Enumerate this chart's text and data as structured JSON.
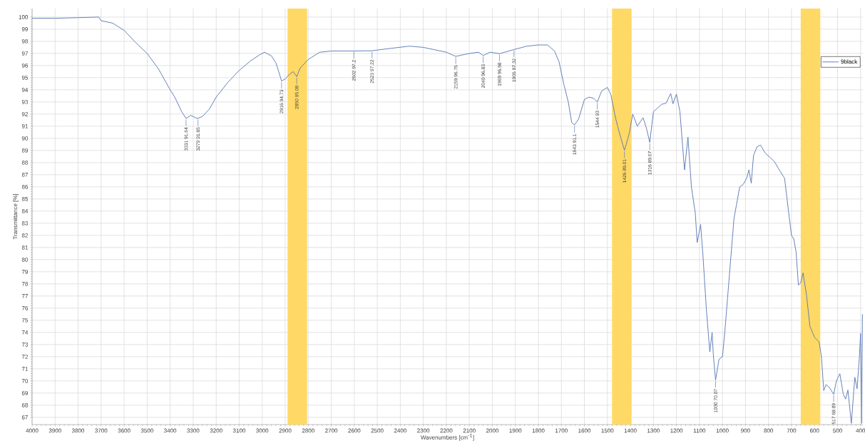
{
  "chart_data": {
    "type": "line",
    "xlabel": "Wavenumbers [cm$^{-1}$]",
    "ylabel": "Transmittance [%]",
    "xlim": [
      4000,
      390
    ],
    "ylim": [
      66.4,
      100.7
    ],
    "xticks": [
      4000,
      3900,
      3800,
      3700,
      3600,
      3500,
      3400,
      3300,
      3200,
      3100,
      3000,
      2900,
      2800,
      2700,
      2600,
      2500,
      2400,
      2300,
      2200,
      2100,
      2000,
      1900,
      1800,
      1700,
      1600,
      1500,
      1400,
      1300,
      1200,
      1100,
      1000,
      900,
      800,
      700,
      600,
      500,
      400
    ],
    "yticks": [
      67,
      68,
      69,
      70,
      71,
      72,
      73,
      74,
      75,
      76,
      77,
      78,
      79,
      80,
      81,
      82,
      83,
      84,
      85,
      86,
      87,
      88,
      89,
      90,
      91,
      92,
      93,
      94,
      95,
      96,
      97,
      98,
      99,
      100
    ],
    "grid": true,
    "legend": "top right",
    "line_style": "solid",
    "x": [
      4000,
      3900,
      3800,
      3710,
      3700,
      3650,
      3600,
      3550,
      3500,
      3450,
      3400,
      3380,
      3350,
      3331,
      3310,
      3290,
      3279,
      3260,
      3230,
      3200,
      3150,
      3100,
      3050,
      3010,
      2990,
      2960,
      2940,
      2925,
      2916,
      2900,
      2880,
      2865,
      2850,
      2835,
      2800,
      2750,
      2700,
      2602,
      2523,
      2450,
      2360,
      2300,
      2250,
      2200,
      2159,
      2100,
      2060,
      2040,
      2010,
      1969,
      1906,
      1850,
      1800,
      1760,
      1730,
      1710,
      1690,
      1670,
      1655,
      1643,
      1625,
      1600,
      1580,
      1560,
      1544,
      1525,
      1500,
      1485,
      1465,
      1450,
      1426,
      1405,
      1390,
      1370,
      1345,
      1330,
      1316,
      1300,
      1285,
      1265,
      1245,
      1225,
      1215,
      1200,
      1185,
      1165,
      1150,
      1135,
      1118,
      1110,
      1095,
      1085,
      1070,
      1055,
      1045,
      1040,
      1030,
      1015,
      1000,
      990,
      970,
      950,
      925,
      910,
      895,
      885,
      875,
      865,
      850,
      835,
      815,
      795,
      775,
      750,
      730,
      710,
      700,
      690,
      680,
      670,
      660,
      650,
      635,
      620,
      600,
      580,
      570,
      560,
      550,
      535,
      517,
      505,
      490,
      475,
      465,
      455,
      440,
      425,
      415,
      405,
      400,
      395,
      392
    ],
    "series": [
      {
        "name": "9black",
        "color": "#5a78b8",
        "values": [
          99.9,
          99.9,
          99.95,
          100,
          99.7,
          99.5,
          98.9,
          97.9,
          97.0,
          95.7,
          94.0,
          93.4,
          92.2,
          91.64,
          91.9,
          91.7,
          91.65,
          91.8,
          92.4,
          93.4,
          94.6,
          95.6,
          96.4,
          96.9,
          97.1,
          96.8,
          96.2,
          95.3,
          94.73,
          94.9,
          95.3,
          95.5,
          95.09,
          95.8,
          96.5,
          97.1,
          97.2,
          97.2,
          97.22,
          97.4,
          97.6,
          97.5,
          97.3,
          97.1,
          96.76,
          97.0,
          97.1,
          96.83,
          97.1,
          96.98,
          97.32,
          97.6,
          97.7,
          97.7,
          97.2,
          96.3,
          94.5,
          93.0,
          91.3,
          91.1,
          91.6,
          93.2,
          93.4,
          93.3,
          93.0,
          93.9,
          94.2,
          93.6,
          91.7,
          90.6,
          89.01,
          90.4,
          92.0,
          91.0,
          91.7,
          90.8,
          89.67,
          92.2,
          92.45,
          92.8,
          92.9,
          93.7,
          92.85,
          93.65,
          92.2,
          87.4,
          90.1,
          86.0,
          83.8,
          81.4,
          82.9,
          80.4,
          75.9,
          72.4,
          74.0,
          72.2,
          70.07,
          71.8,
          72.0,
          74.0,
          78.7,
          83.4,
          86.0,
          86.2,
          86.7,
          87.4,
          86.3,
          88.6,
          89.3,
          89.45,
          88.8,
          88.45,
          88.1,
          87.3,
          86.7,
          83.5,
          82.0,
          81.7,
          80.6,
          77.9,
          78.1,
          78.9,
          77.1,
          74.5,
          73.6,
          73.2,
          72.0,
          69.2,
          69.7,
          69.45,
          68.89,
          70.0,
          70.6,
          68.9,
          68.5,
          69.25,
          66.5,
          70.3,
          69.35,
          72.0,
          73.9,
          66.5,
          75.5
        ]
      }
    ],
    "bands": [
      {
        "axis": "x",
        "from": 2890,
        "to": 2805,
        "color": "#ffd966"
      },
      {
        "axis": "x",
        "from": 1480,
        "to": 1395,
        "color": "#ffd966"
      },
      {
        "axis": "x",
        "from": 660,
        "to": 575,
        "color": "#ffd966"
      }
    ],
    "annotations": [
      {
        "text": "3331 91.64",
        "x": 3331,
        "y": 91.64
      },
      {
        "text": "3279 91.65",
        "x": 3279,
        "y": 91.65
      },
      {
        "text": "2916 94.73",
        "x": 2916,
        "y": 94.73
      },
      {
        "text": "2850 95.09",
        "x": 2850,
        "y": 95.09
      },
      {
        "text": "2602 97.2",
        "x": 2602,
        "y": 97.2
      },
      {
        "text": "2523 97.22",
        "x": 2523,
        "y": 97.22
      },
      {
        "text": "2159 96.76",
        "x": 2159,
        "y": 96.76
      },
      {
        "text": "2040 96.83",
        "x": 2040,
        "y": 96.83
      },
      {
        "text": "1969 96.98",
        "x": 1969,
        "y": 96.98
      },
      {
        "text": "1906 97.32",
        "x": 1906,
        "y": 97.32
      },
      {
        "text": "1643 91.1",
        "x": 1643,
        "y": 91.1
      },
      {
        "text": "1544 93",
        "x": 1544,
        "y": 93
      },
      {
        "text": "1426 89.01",
        "x": 1426,
        "y": 89.01
      },
      {
        "text": "1316 89.67",
        "x": 1316,
        "y": 89.67
      },
      {
        "text": "1030 70.07",
        "x": 1030,
        "y": 70.07
      },
      {
        "text": "517 68.89",
        "x": 517,
        "y": 68.89
      }
    ]
  }
}
